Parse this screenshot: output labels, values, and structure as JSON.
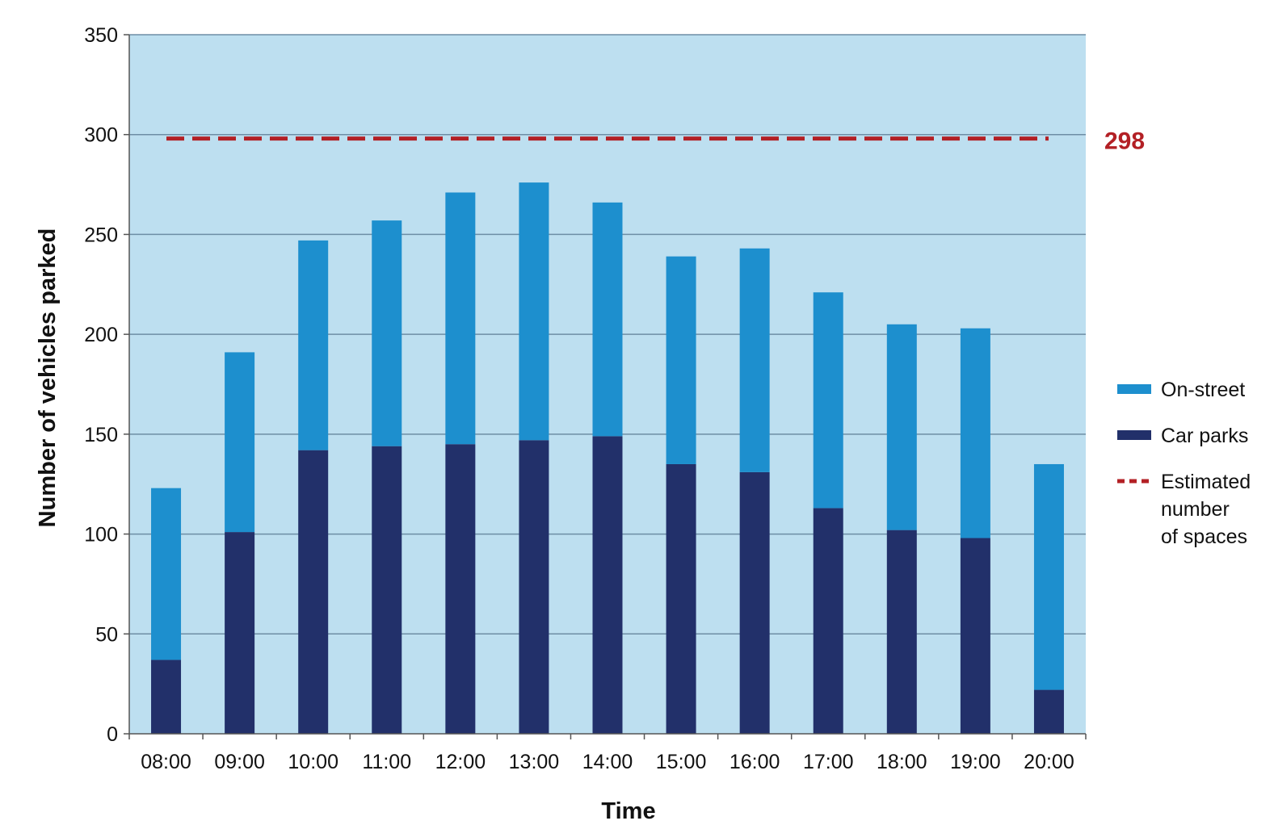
{
  "chart_data": {
    "type": "bar",
    "stacked": true,
    "title": "",
    "xlabel": "Time",
    "ylabel": "Number of vehicles parked",
    "ylim": [
      0,
      350
    ],
    "yticks": [
      0,
      50,
      100,
      150,
      200,
      250,
      300,
      350
    ],
    "grid": true,
    "legend_position": "right",
    "categories": [
      "08:00",
      "09:00",
      "10:00",
      "11:00",
      "12:00",
      "13:00",
      "14:00",
      "15:00",
      "16:00",
      "17:00",
      "18:00",
      "19:00",
      "20:00"
    ],
    "series": [
      {
        "name": "Car parks",
        "color": "#22306a",
        "values": [
          37,
          101,
          142,
          144,
          145,
          147,
          149,
          135,
          131,
          113,
          102,
          98,
          22
        ]
      },
      {
        "name": "On-street",
        "color": "#1d8fce",
        "values": [
          86,
          90,
          105,
          113,
          126,
          129,
          117,
          104,
          112,
          108,
          103,
          105,
          113
        ]
      }
    ],
    "reference_line": {
      "label": "Estimated number of spaces",
      "value": 298,
      "value_label": "298",
      "color": "#b32025",
      "style": "dashed"
    },
    "legend": [
      {
        "type": "bar",
        "color": "#1d8fce",
        "lines": [
          "On-street"
        ]
      },
      {
        "type": "bar",
        "color": "#22306a",
        "lines": [
          "Car parks"
        ]
      },
      {
        "type": "dashed",
        "color": "#b32025",
        "lines": [
          "Estimated",
          "number",
          "of spaces"
        ]
      }
    ],
    "plot_background": "#bddff0",
    "grid_color": "#6e8ea5"
  }
}
